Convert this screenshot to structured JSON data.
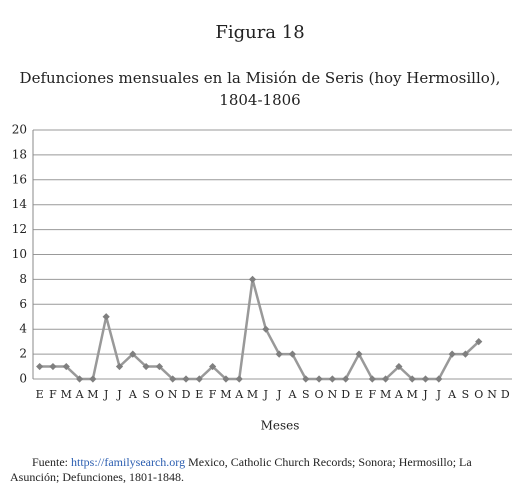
{
  "chart_data": {
    "type": "line",
    "title": "Figura 18",
    "subtitle": [
      "Defunciones mensuales en la Misión de Seris (hoy Hermosillo),",
      "1804-1806"
    ],
    "x_label": "Meses",
    "categories": [
      "E",
      "F",
      "M",
      "A",
      "M",
      "J",
      "J",
      "A",
      "S",
      "O",
      "N",
      "D",
      "E",
      "F",
      "M",
      "A",
      "M",
      "J",
      "J",
      "A",
      "S",
      "O",
      "N",
      "D",
      "E",
      "F",
      "M",
      "A",
      "M",
      "J",
      "J",
      "A",
      "S",
      "O",
      "N",
      "D"
    ],
    "series": [
      {
        "color": "#999999",
        "marker_color": "#7f7f7f",
        "values": [
          1,
          1,
          1,
          0,
          0,
          5,
          1,
          2,
          1,
          1,
          0,
          0,
          0,
          1,
          0,
          0,
          8,
          4,
          2,
          2,
          0,
          0,
          0,
          0,
          2,
          0,
          0,
          1,
          0,
          0,
          0,
          2,
          2,
          3,
          null,
          null
        ]
      }
    ],
    "ylim": [
      0,
      20
    ],
    "yticks": [
      0,
      2,
      4,
      6,
      8,
      10,
      12,
      14,
      16,
      18,
      20
    ],
    "grid": true,
    "source": {
      "prefix": "Fuente:",
      "link": "https://familysearch.org",
      "text": "Mexico, Catholic Church Records; Sonora; Hermosillo; La Asunción; Defunciones, 1801-1848."
    }
  }
}
